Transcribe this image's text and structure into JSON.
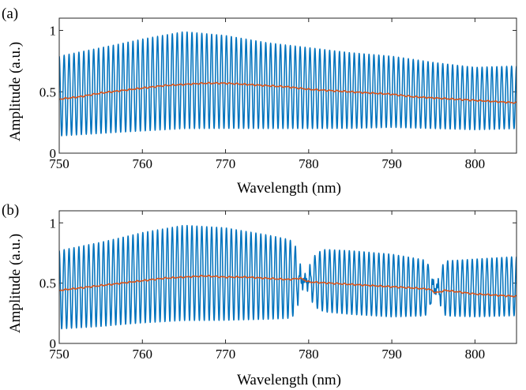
{
  "chart_data": [
    {
      "type": "line",
      "panel_label": "(a)",
      "xlabel": "Wavelength  (nm)",
      "ylabel": "Amplitude (a.u.)",
      "xlim": [
        750,
        805
      ],
      "ylim": [
        0,
        1.1
      ],
      "xticks": [
        750,
        760,
        770,
        780,
        790,
        800
      ],
      "xtick_labels": [
        "750",
        "760",
        "770",
        "780",
        "790",
        "800"
      ],
      "yticks": [
        0,
        0.5,
        1
      ],
      "ytick_labels": [
        "0",
        "0.5",
        "1"
      ],
      "grid": false,
      "series": [
        {
          "color": "#0072BD",
          "style": "interference-fringes",
          "fringe_count": 93,
          "upper_envelope": {
            "x": [
              750,
              755,
              760,
              765,
              770,
              775,
              780,
              785,
              790,
              795,
              800,
              805
            ],
            "y": [
              0.79,
              0.86,
              0.93,
              0.99,
              0.96,
              0.9,
              0.86,
              0.82,
              0.79,
              0.74,
              0.7,
              0.71
            ]
          },
          "lower_envelope": {
            "x": [
              750,
              755,
              760,
              765,
              770,
              775,
              780,
              785,
              790,
              795,
              800,
              805
            ],
            "y": [
              0.14,
              0.16,
              0.18,
              0.2,
              0.2,
              0.2,
              0.2,
              0.2,
              0.21,
              0.2,
              0.19,
              0.2
            ]
          },
          "glitches": []
        },
        {
          "color": "#D95319",
          "style": "mean",
          "x": [
            750,
            752.5,
            755,
            757.5,
            760,
            762.5,
            765,
            767.5,
            770,
            772.5,
            775,
            777.5,
            780,
            782.5,
            785,
            787.5,
            790,
            792.5,
            795,
            797.5,
            800,
            802.5,
            805
          ],
          "y": [
            0.44,
            0.46,
            0.49,
            0.51,
            0.53,
            0.55,
            0.56,
            0.57,
            0.57,
            0.56,
            0.55,
            0.54,
            0.52,
            0.51,
            0.5,
            0.49,
            0.48,
            0.46,
            0.45,
            0.44,
            0.43,
            0.42,
            0.41
          ]
        }
      ]
    },
    {
      "type": "line",
      "panel_label": "(b)",
      "xlabel": "Wavelength  (nm)",
      "ylabel": "Amplitude (a.u.)",
      "xlim": [
        750,
        805
      ],
      "ylim": [
        0,
        1.1
      ],
      "xticks": [
        750,
        760,
        770,
        780,
        790,
        800
      ],
      "xtick_labels": [
        "750",
        "760",
        "770",
        "780",
        "790",
        "800"
      ],
      "yticks": [
        0,
        0.5,
        1
      ],
      "ytick_labels": [
        "0",
        "0.5",
        "1"
      ],
      "grid": false,
      "series": [
        {
          "color": "#0072BD",
          "style": "interference-fringes",
          "fringe_count": 93,
          "upper_envelope": {
            "x": [
              750,
              755,
              760,
              765,
              770,
              775,
              778.5,
              779.5,
              782,
              785,
              790,
              795,
              800,
              805
            ],
            "y": [
              0.77,
              0.84,
              0.92,
              0.98,
              0.96,
              0.9,
              0.85,
              0.72,
              0.78,
              0.77,
              0.74,
              0.68,
              0.7,
              0.72
            ]
          },
          "lower_envelope": {
            "x": [
              750,
              755,
              760,
              765,
              770,
              775,
              778.5,
              779.5,
              782,
              785,
              790,
              795,
              800,
              805
            ],
            "y": [
              0.12,
              0.14,
              0.17,
              0.19,
              0.19,
              0.2,
              0.21,
              0.32,
              0.26,
              0.24,
              0.22,
              0.23,
              0.22,
              0.23
            ]
          },
          "glitches": [
            {
              "x": 779.5,
              "width": 0.8,
              "depth": 0.7
            },
            {
              "x": 795.3,
              "width": 0.6,
              "depth": 0.75
            }
          ]
        },
        {
          "color": "#D95319",
          "style": "mean",
          "x": [
            750,
            752.5,
            755,
            757.5,
            760,
            762.5,
            765,
            767.5,
            770,
            772.5,
            775,
            777.5,
            779,
            780,
            782.5,
            785,
            787.5,
            790,
            792.5,
            794.5,
            795.3,
            796.5,
            800,
            802.5,
            805
          ],
          "y": [
            0.44,
            0.46,
            0.48,
            0.5,
            0.52,
            0.54,
            0.55,
            0.56,
            0.55,
            0.55,
            0.54,
            0.53,
            0.54,
            0.51,
            0.5,
            0.49,
            0.48,
            0.47,
            0.46,
            0.45,
            0.42,
            0.44,
            0.41,
            0.4,
            0.39
          ]
        }
      ]
    }
  ]
}
